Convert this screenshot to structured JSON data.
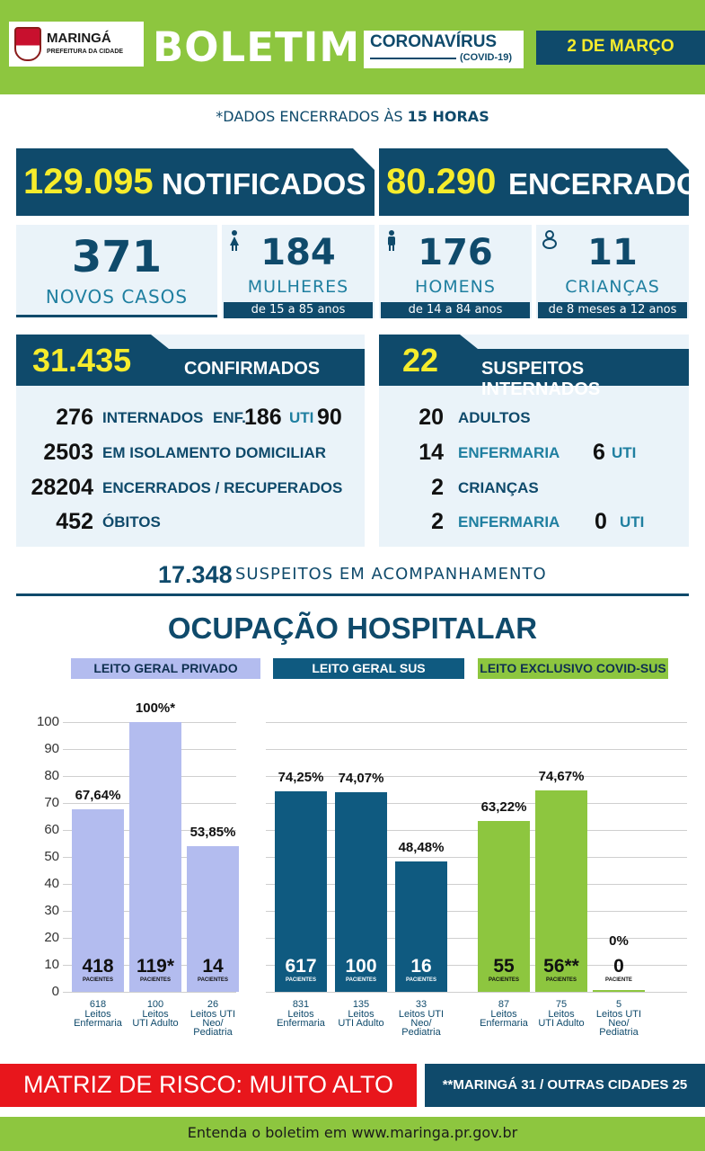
{
  "header": {
    "city": "MARINGÁ",
    "city_sub": "PREFEITURA DA CIDADE",
    "title": "BOLETIM",
    "topic": "CORONAVÍRUS",
    "topic_sub": "(COVID-19)",
    "date": "2 DE MARÇO"
  },
  "cutoff": {
    "prefix": "*DADOS ENCERRADOS ÀS ",
    "hour": "15 HORAS"
  },
  "totals": {
    "notified_value": "129.095",
    "notified_label": "NOTIFICADOS",
    "closed_value": "80.290",
    "closed_label": "ENCERRADOS"
  },
  "new_cases": {
    "value": "371",
    "label": "NOVOS CASOS",
    "women": {
      "value": "184",
      "label": "MULHERES",
      "range": "de 15 a 85 anos",
      "icon": "woman-icon"
    },
    "men": {
      "value": "176",
      "label": "HOMENS",
      "range": "de 14 a 84 anos",
      "icon": "man-icon"
    },
    "children": {
      "value": "11",
      "label": "CRIANÇAS",
      "range": "de 8 meses a 12 anos",
      "icon": "baby-icon"
    }
  },
  "confirmed": {
    "value": "31.435",
    "label": "CONFIRMADOS",
    "hospitalized_value": "276",
    "hospitalized_label": "INTERNADOS",
    "ward_label": "ENF.",
    "ward_value": "186",
    "icu_label": "UTI",
    "icu_value": "90",
    "home_value": "2503",
    "home_label": "EM ISOLAMENTO DOMICILIAR",
    "recovered_value": "28204",
    "recovered_label": "ENCERRADOS / RECUPERADOS",
    "deaths_value": "452",
    "deaths_label": "ÓBITOS"
  },
  "suspected": {
    "value": "22",
    "label": "SUSPEITOS INTERNADOS",
    "adults_value": "20",
    "adults_label": "ADULTOS",
    "adults_ward_value": "14",
    "adults_ward_label": "ENFERMARIA",
    "adults_icu_value": "6",
    "adults_icu_label": "UTI",
    "children_value": "2",
    "children_label": "CRIANÇAS",
    "children_ward_value": "2",
    "children_ward_label": "ENFERMARIA",
    "children_icu_value": "0",
    "children_icu_label": "UTI"
  },
  "tracking": {
    "value": "17.348",
    "label": "SUSPEITOS EM ACOMPANHAMENTO"
  },
  "hospital": {
    "title": "OCUPAÇÃO HOSPITALAR",
    "categories": [
      "LEITO GERAL PRIVADO",
      "LEITO GERAL SUS",
      "LEITO EXCLUSIVO COVID-SUS"
    ],
    "colors": {
      "private": "#b3bcef",
      "sus": "#0f5a80",
      "covid": "#8dc63f"
    }
  },
  "chart_data": {
    "type": "bar",
    "ylim": [
      0,
      100
    ],
    "yticks": [
      "0",
      "10",
      "20",
      "30",
      "40",
      "50",
      "60",
      "70",
      "80",
      "90",
      "100"
    ],
    "groups": [
      {
        "name": "LEITO GERAL PRIVADO",
        "bars": [
          {
            "pct": 67.64,
            "pct_label": "67,64%",
            "patients": "418",
            "beds": "618",
            "bed_type": [
              "Leitos",
              "Enfermaria"
            ]
          },
          {
            "pct": 100,
            "pct_label": "100%*",
            "patients": "119*",
            "beds": "100",
            "bed_type": [
              "Leitos",
              "UTI Adulto"
            ]
          },
          {
            "pct": 53.85,
            "pct_label": "53,85%",
            "patients": "14",
            "beds": "26",
            "bed_type": [
              "Leitos UTI",
              "Neo/",
              "Pediatria"
            ]
          }
        ]
      },
      {
        "name": "LEITO GERAL SUS",
        "bars": [
          {
            "pct": 74.25,
            "pct_label": "74,25%",
            "patients": "617",
            "beds": "831",
            "bed_type": [
              "Leitos",
              "Enfermaria"
            ]
          },
          {
            "pct": 74.07,
            "pct_label": "74,07%",
            "patients": "100",
            "beds": "135",
            "bed_type": [
              "Leitos",
              "UTI Adulto"
            ]
          },
          {
            "pct": 48.48,
            "pct_label": "48,48%",
            "patients": "16",
            "beds": "33",
            "bed_type": [
              "Leitos UTI",
              "Neo/",
              "Pediatria"
            ]
          }
        ]
      },
      {
        "name": "LEITO EXCLUSIVO COVID-SUS",
        "bars": [
          {
            "pct": 63.22,
            "pct_label": "63,22%",
            "patients": "55",
            "beds": "87",
            "bed_type": [
              "Leitos",
              "Enfermaria"
            ]
          },
          {
            "pct": 74.67,
            "pct_label": "74,67%",
            "patients": "56**",
            "beds": "75",
            "bed_type": [
              "Leitos",
              "UTI Adulto"
            ]
          },
          {
            "pct": 0,
            "pct_label": "0%",
            "patients": "0",
            "beds": "5",
            "bed_type": [
              "Leitos UTI",
              "Neo/",
              "Pediatria"
            ]
          }
        ]
      }
    ],
    "patients_label": "PACIENTES",
    "patient_label_singular": "PACIENTE"
  },
  "risk": "MATRIZ DE RISCO: MUITO ALTO",
  "origin": "**MARINGÁ 31 / OUTRAS CIDADES 25",
  "footer": "Entenda o boletim em www.maringa.pr.gov.br"
}
